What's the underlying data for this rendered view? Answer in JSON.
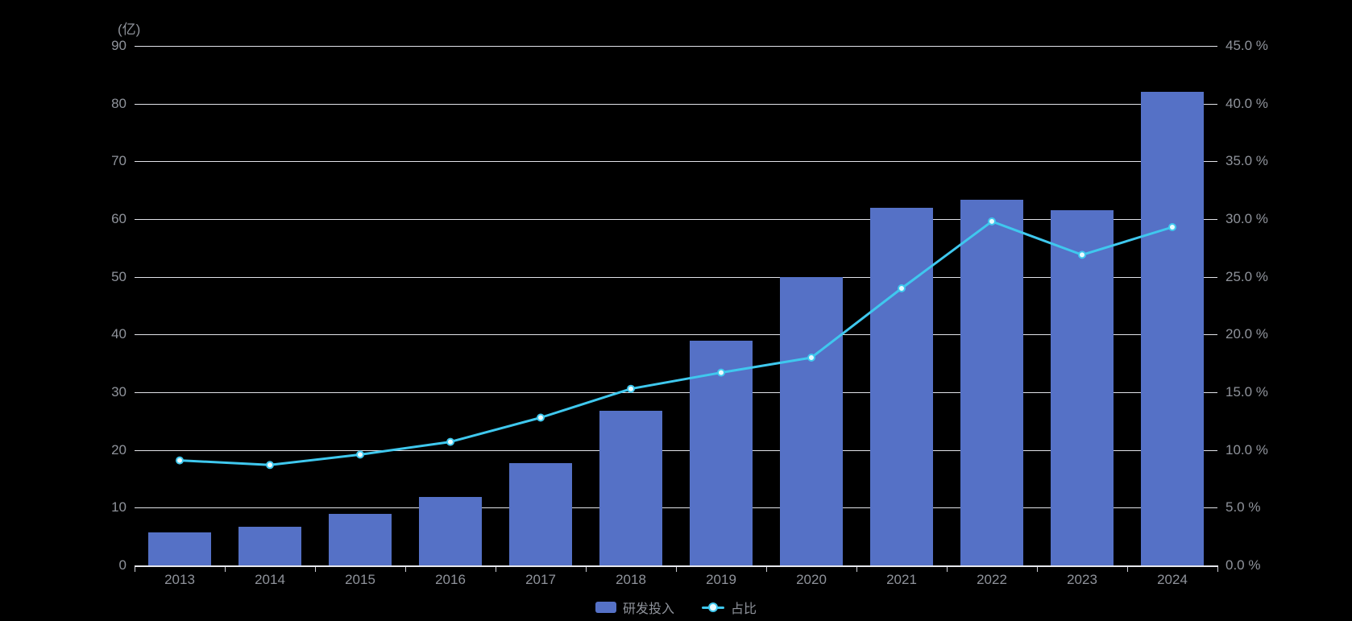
{
  "background": "#000000",
  "text_color": "#8f939b",
  "gridline_color": "#e2e3e9",
  "chart_data": {
    "type": "combo",
    "title": "",
    "y_axis_name": "(亿)",
    "categories": [
      "2013",
      "2014",
      "2015",
      "2016",
      "2017",
      "2018",
      "2019",
      "2020",
      "2021",
      "2022",
      "2023",
      "2024"
    ],
    "series": [
      {
        "name": "研发投入",
        "type": "bar",
        "axis": "left",
        "unit": "亿",
        "color": "#5571c6",
        "values": [
          5.7,
          6.7,
          9.0,
          11.9,
          17.7,
          26.8,
          39.0,
          49.9,
          61.9,
          63.3,
          61.5,
          82.1
        ]
      },
      {
        "name": "占比",
        "type": "line",
        "axis": "right",
        "unit": "%",
        "color": "#3fc8ee",
        "marker": "circle-hollow",
        "values": [
          9.1,
          8.7,
          9.6,
          10.7,
          12.8,
          15.3,
          16.7,
          18.0,
          24.0,
          29.8,
          26.9,
          29.3
        ]
      }
    ],
    "axes": {
      "left": {
        "min": 0,
        "max": 90,
        "step": 10,
        "tick_labels_top_down": [
          "90",
          "80",
          "70",
          "60",
          "50",
          "40",
          "30",
          "20",
          "10",
          "0"
        ]
      },
      "right": {
        "min": 0,
        "max": 45,
        "step": 5,
        "tick_labels_top_down": [
          "45.0 %",
          "40.0 %",
          "35.0 %",
          "30.0 %",
          "25.0 %",
          "20.0 %",
          "15.0 %",
          "10.0 %",
          "5.0 %",
          "0.0 %"
        ]
      }
    },
    "grid": true,
    "legend_position": "bottom-center",
    "legend": [
      {
        "label": "研发投入",
        "marker": "rect"
      },
      {
        "label": "占比",
        "marker": "line-dot"
      }
    ]
  }
}
